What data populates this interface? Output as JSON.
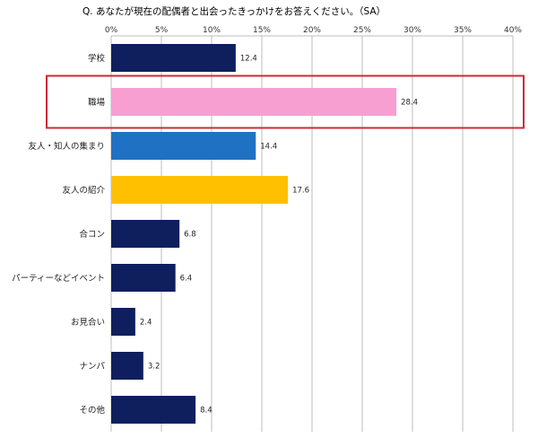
{
  "chart_data": {
    "type": "bar",
    "orientation": "horizontal",
    "title": "Q. あなたが現在の配偶者と出会ったきっかけをお答えください。（SA）",
    "xlim": [
      0,
      40
    ],
    "x_ticks": [
      "0%",
      "5%",
      "10%",
      "15%",
      "20%",
      "25%",
      "30%",
      "35%",
      "40%"
    ],
    "grid": "vertical",
    "categories": [
      "学校",
      "職場",
      "友人・知人の集まり",
      "友人の紹介",
      "合コン",
      "パーティーなどイベント",
      "お見合い",
      "ナンパ",
      "その他"
    ],
    "values": [
      12.4,
      28.4,
      14.4,
      17.6,
      6.8,
      6.4,
      2.4,
      3.2,
      8.4
    ],
    "value_labels": [
      "12.4",
      "28.4",
      "14.4",
      "17.6",
      "6.8",
      "6.4",
      "2.4",
      "3.2",
      "8.4"
    ],
    "colors": [
      "#0f1f5e",
      "#f79fd1",
      "#1f72c3",
      "#ffc000",
      "#0f1f5e",
      "#0f1f5e",
      "#0f1f5e",
      "#0f1f5e",
      "#0f1f5e"
    ],
    "highlight": {
      "category": "職場",
      "color": "#cc2b36"
    },
    "axis_color": "#bdbdbd"
  }
}
